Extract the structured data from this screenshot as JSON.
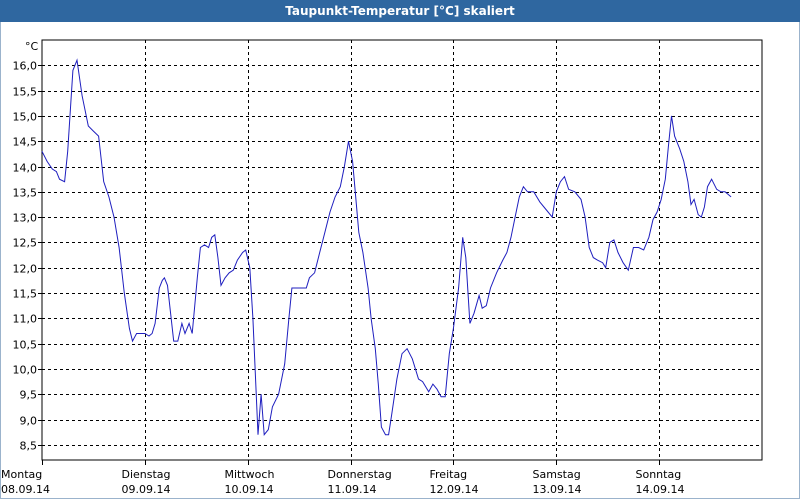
{
  "window": {
    "title": "Taupunkt-Temperatur [°C] skaliert"
  },
  "chart_data": {
    "type": "line",
    "title": "Taupunkt-Temperatur [°C] skaliert",
    "ylabel": "°C",
    "xlabel": "",
    "ylim": [
      8.2,
      16.5
    ],
    "xlim": [
      0,
      7
    ],
    "grid": true,
    "legend": "none",
    "line_color": "#1f1fbf",
    "yticks": [
      "8,5",
      "9,0",
      "9,5",
      "10,0",
      "10,5",
      "11,0",
      "11,5",
      "12,0",
      "12,5",
      "13,0",
      "13,5",
      "14,0",
      "14,5",
      "15,0",
      "15,5",
      "16,0"
    ],
    "ytick_values": [
      8.5,
      9.0,
      9.5,
      10.0,
      10.5,
      11.0,
      11.5,
      12.0,
      12.5,
      13.0,
      13.5,
      14.0,
      14.5,
      15.0,
      15.5,
      16.0
    ],
    "xticks": [
      {
        "day": "Montag",
        "date": "08.09.14"
      },
      {
        "day": "Dienstag",
        "date": "09.09.14"
      },
      {
        "day": "Mittwoch",
        "date": "10.09.14"
      },
      {
        "day": "Donnerstag",
        "date": "11.09.14"
      },
      {
        "day": "Freitag",
        "date": "12.09.14"
      },
      {
        "day": "Samstag",
        "date": "13.09.14"
      },
      {
        "day": "Sonntag",
        "date": "14.09.14"
      }
    ],
    "series": [
      {
        "values": [
          [
            0.0,
            14.3
          ],
          [
            0.05,
            14.1
          ],
          [
            0.1,
            13.95
          ],
          [
            0.14,
            13.9
          ],
          [
            0.17,
            13.75
          ],
          [
            0.22,
            13.7
          ],
          [
            0.25,
            14.3
          ],
          [
            0.3,
            15.9
          ],
          [
            0.34,
            16.1
          ],
          [
            0.39,
            15.4
          ],
          [
            0.45,
            14.8
          ],
          [
            0.5,
            14.7
          ],
          [
            0.55,
            14.6
          ],
          [
            0.6,
            13.7
          ],
          [
            0.65,
            13.4
          ],
          [
            0.7,
            13.0
          ],
          [
            0.75,
            12.4
          ],
          [
            0.8,
            11.5
          ],
          [
            0.85,
            10.8
          ],
          [
            0.88,
            10.55
          ],
          [
            0.92,
            10.7
          ],
          [
            1.0,
            10.7
          ],
          [
            1.04,
            10.65
          ],
          [
            1.07,
            10.7
          ],
          [
            1.1,
            10.9
          ],
          [
            1.14,
            11.6
          ],
          [
            1.17,
            11.75
          ],
          [
            1.19,
            11.8
          ],
          [
            1.22,
            11.65
          ],
          [
            1.25,
            11.1
          ],
          [
            1.28,
            10.55
          ],
          [
            1.32,
            10.55
          ],
          [
            1.36,
            10.9
          ],
          [
            1.39,
            10.7
          ],
          [
            1.43,
            10.9
          ],
          [
            1.46,
            10.7
          ],
          [
            1.51,
            11.8
          ],
          [
            1.54,
            12.4
          ],
          [
            1.58,
            12.45
          ],
          [
            1.62,
            12.4
          ],
          [
            1.65,
            12.6
          ],
          [
            1.68,
            12.65
          ],
          [
            1.71,
            12.2
          ],
          [
            1.74,
            11.65
          ],
          [
            1.78,
            11.8
          ],
          [
            1.82,
            11.9
          ],
          [
            1.86,
            11.95
          ],
          [
            1.9,
            12.15
          ],
          [
            1.95,
            12.3
          ],
          [
            1.98,
            12.35
          ],
          [
            2.02,
            12.0
          ],
          [
            2.05,
            11.0
          ],
          [
            2.1,
            8.7
          ],
          [
            2.13,
            9.5
          ],
          [
            2.16,
            8.7
          ],
          [
            2.2,
            8.8
          ],
          [
            2.24,
            9.25
          ],
          [
            2.3,
            9.5
          ],
          [
            2.36,
            10.1
          ],
          [
            2.4,
            11.0
          ],
          [
            2.43,
            11.6
          ],
          [
            2.47,
            11.6
          ],
          [
            2.53,
            11.6
          ],
          [
            2.57,
            11.6
          ],
          [
            2.6,
            11.8
          ],
          [
            2.65,
            11.9
          ],
          [
            2.7,
            12.3
          ],
          [
            2.75,
            12.7
          ],
          [
            2.8,
            13.1
          ],
          [
            2.85,
            13.4
          ],
          [
            2.9,
            13.6
          ],
          [
            2.94,
            14.0
          ],
          [
            2.98,
            14.5
          ],
          [
            3.02,
            14.1
          ],
          [
            3.08,
            12.7
          ],
          [
            3.12,
            12.3
          ],
          [
            3.17,
            11.6
          ],
          [
            3.2,
            11.0
          ],
          [
            3.24,
            10.4
          ],
          [
            3.27,
            9.7
          ],
          [
            3.3,
            8.85
          ],
          [
            3.34,
            8.7
          ],
          [
            3.37,
            8.7
          ],
          [
            3.4,
            9.1
          ],
          [
            3.45,
            9.8
          ],
          [
            3.5,
            10.3
          ],
          [
            3.55,
            10.4
          ],
          [
            3.6,
            10.2
          ],
          [
            3.66,
            9.8
          ],
          [
            3.7,
            9.75
          ],
          [
            3.76,
            9.55
          ],
          [
            3.8,
            9.7
          ],
          [
            3.84,
            9.6
          ],
          [
            3.88,
            9.45
          ],
          [
            3.92,
            9.45
          ],
          [
            3.96,
            10.3
          ],
          [
            4.0,
            10.8
          ],
          [
            4.05,
            11.6
          ],
          [
            4.09,
            12.6
          ],
          [
            4.12,
            12.2
          ],
          [
            4.16,
            10.9
          ],
          [
            4.2,
            11.1
          ],
          [
            4.25,
            11.45
          ],
          [
            4.28,
            11.2
          ],
          [
            4.32,
            11.25
          ],
          [
            4.36,
            11.6
          ],
          [
            4.42,
            11.9
          ],
          [
            4.48,
            12.15
          ],
          [
            4.52,
            12.3
          ],
          [
            4.56,
            12.6
          ],
          [
            4.6,
            13.0
          ],
          [
            4.64,
            13.4
          ],
          [
            4.68,
            13.6
          ],
          [
            4.72,
            13.5
          ],
          [
            4.78,
            13.5
          ],
          [
            4.84,
            13.3
          ],
          [
            4.9,
            13.15
          ],
          [
            4.96,
            13.0
          ],
          [
            5.0,
            13.5
          ],
          [
            5.04,
            13.7
          ],
          [
            5.08,
            13.8
          ],
          [
            5.12,
            13.55
          ],
          [
            5.18,
            13.5
          ],
          [
            5.24,
            13.35
          ],
          [
            5.28,
            13.0
          ],
          [
            5.32,
            12.4
          ],
          [
            5.36,
            12.2
          ],
          [
            5.4,
            12.15
          ],
          [
            5.45,
            12.1
          ],
          [
            5.48,
            12.0
          ],
          [
            5.52,
            12.5
          ],
          [
            5.56,
            12.55
          ],
          [
            5.6,
            12.3
          ],
          [
            5.65,
            12.1
          ],
          [
            5.7,
            11.95
          ],
          [
            5.75,
            12.4
          ],
          [
            5.8,
            12.4
          ],
          [
            5.85,
            12.35
          ],
          [
            5.9,
            12.6
          ],
          [
            5.94,
            12.95
          ],
          [
            5.98,
            13.1
          ],
          [
            6.02,
            13.35
          ],
          [
            6.06,
            13.75
          ],
          [
            6.09,
            14.4
          ],
          [
            6.12,
            15.0
          ],
          [
            6.15,
            14.6
          ],
          [
            6.2,
            14.35
          ],
          [
            6.24,
            14.1
          ],
          [
            6.28,
            13.7
          ],
          [
            6.31,
            13.25
          ],
          [
            6.34,
            13.35
          ],
          [
            6.38,
            13.05
          ],
          [
            6.41,
            13.0
          ],
          [
            6.44,
            13.2
          ],
          [
            6.47,
            13.6
          ],
          [
            6.51,
            13.75
          ],
          [
            6.56,
            13.55
          ],
          [
            6.6,
            13.5
          ],
          [
            6.64,
            13.5
          ],
          [
            6.7,
            13.4
          ]
        ]
      }
    ]
  }
}
